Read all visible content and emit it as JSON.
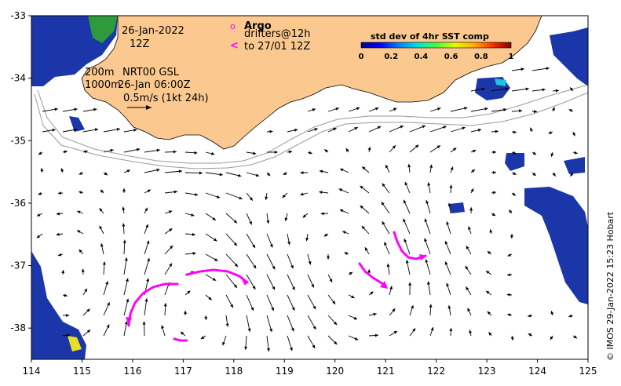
{
  "map": {
    "date": "26-Jan-2022",
    "hour": "12Z",
    "legend_marker": "o",
    "legend_title": "Argo",
    "legend_drifters": "drifters@12h",
    "legend_arrow": "<",
    "legend_drifters_to": "to 27/01 12Z",
    "isobath_200": "200m",
    "isobath_1000": "1000m",
    "product": "NRT00 GSL",
    "product_time": "26-Jan 06:00Z",
    "scale_label": "0.5m/s (1kt 24h)",
    "credit": "© IMOS 29-Jan-2022 15:23 Hobart",
    "colors": {
      "land": "#fbc98f",
      "ocean": "#ffffff",
      "coast": "#000000",
      "isobath": "#9a9a9a",
      "arrow": "#000000",
      "drifter": "#ff00ff",
      "sst_high": "#1b36a8"
    }
  },
  "colorbar": {
    "title": "std dev of 4hr SST comp",
    "ticks": [
      "0",
      "0.2",
      "0.4",
      "0.6",
      "0.8",
      "1"
    ],
    "colors": [
      "#000090",
      "#0000ff",
      "#0080ff",
      "#00e0e0",
      "#40ff40",
      "#e0ff00",
      "#ffb000",
      "#ff3000",
      "#800000"
    ]
  },
  "axes": {
    "x_ticks": [
      "114",
      "115",
      "116",
      "117",
      "118",
      "119",
      "120",
      "121",
      "122",
      "123",
      "124",
      "125"
    ],
    "y_ticks": [
      "-33",
      "-34",
      "-35",
      "-36",
      "-37",
      "-38"
    ],
    "x_range": [
      114,
      125
    ],
    "y_range": [
      -38.5,
      -33
    ]
  }
}
